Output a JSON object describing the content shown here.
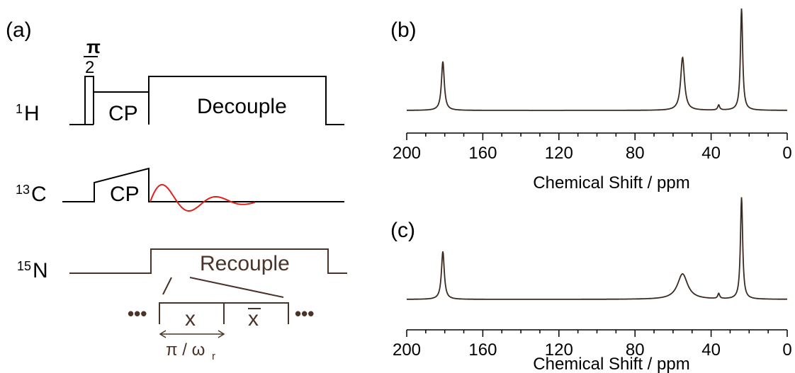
{
  "colors": {
    "line": "#000000",
    "spectrum": "#3b2a20",
    "brown_text": "#4a3328",
    "fid": "#e0201b"
  },
  "panel_a": {
    "label": "(a)",
    "pulse_fraction_num": "π",
    "pulse_fraction_den": "2",
    "channels": [
      {
        "nucleus_sup": "1",
        "nucleus": "H",
        "blocks": [
          "CP",
          "Decouple"
        ]
      },
      {
        "nucleus_sup": "13",
        "nucleus": "C",
        "blocks": [
          "CP"
        ]
      },
      {
        "nucleus_sup": "15",
        "nucleus": "N",
        "blocks": [
          "Recouple"
        ]
      }
    ],
    "recouple_detail": {
      "dots_left": "•••",
      "dots_right": "•••",
      "phase_1": "x",
      "phase_2": "x",
      "timing_label": "π / ω",
      "timing_sub": "r"
    }
  },
  "panel_b": {
    "label": "(b)",
    "xlabel": "Chemical Shift / ppm",
    "ticks": [
      "200",
      "160",
      "120",
      "80",
      "40",
      "0"
    ]
  },
  "panel_c": {
    "label": "(c)",
    "xlabel": "Chemical Shift / ppm",
    "ticks": [
      "200",
      "160",
      "120",
      "80",
      "40",
      "0"
    ]
  },
  "chart_data": [
    {
      "type": "line",
      "panel": "(b)",
      "xlabel": "Chemical Shift / ppm",
      "xlim": [
        200,
        0
      ],
      "x_reversed": true,
      "peaks": [
        {
          "ppm": 181,
          "height": 0.48,
          "width": 0.9
        },
        {
          "ppm": 55,
          "height": 0.52,
          "width": 1.2
        },
        {
          "ppm": 36,
          "height": 0.05,
          "width": 0.6
        },
        {
          "ppm": 24,
          "height": 1.0,
          "width": 0.7
        }
      ]
    },
    {
      "type": "line",
      "panel": "(c)",
      "xlabel": "Chemical Shift / ppm",
      "xlim": [
        200,
        0
      ],
      "x_reversed": true,
      "peaks": [
        {
          "ppm": 181,
          "height": 0.47,
          "width": 0.9
        },
        {
          "ppm": 55,
          "height": 0.25,
          "width": 3.2
        },
        {
          "ppm": 36,
          "height": 0.05,
          "width": 0.6
        },
        {
          "ppm": 24,
          "height": 1.0,
          "width": 0.7
        }
      ]
    }
  ]
}
